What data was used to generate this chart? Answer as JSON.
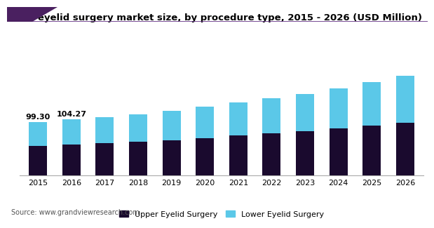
{
  "title": "U.K. eyelid surgery market size, by procedure type, 2015 - 2026 (USD Million)",
  "years": [
    2015,
    2016,
    2017,
    2018,
    2019,
    2020,
    2021,
    2022,
    2023,
    2024,
    2025,
    2026
  ],
  "upper": [
    55.0,
    57.5,
    60.0,
    62.5,
    66.0,
    70.0,
    74.0,
    78.0,
    82.5,
    88.0,
    93.0,
    98.5
  ],
  "lower": [
    44.3,
    46.77,
    49.0,
    51.5,
    54.5,
    58.0,
    62.0,
    65.5,
    69.5,
    75.0,
    81.0,
    87.0
  ],
  "annotations": {
    "2015": "99.30",
    "2016": "104.27"
  },
  "upper_color": "#1a0a2e",
  "lower_color": "#5bc8e8",
  "title_color": "#000000",
  "background_color": "#ffffff",
  "source_text": "Source: www.grandviewresearch.com",
  "legend_upper": "Upper Eyelid Surgery",
  "legend_lower": "Lower Eyelid Surgery",
  "title_fontsize": 9.5,
  "tick_fontsize": 8,
  "legend_fontsize": 8,
  "source_fontsize": 7,
  "bar_width": 0.55,
  "ylim": [
    0,
    220
  ],
  "header_bar_color": "#5c3070",
  "header_triangle_color": "#3d1a5c"
}
